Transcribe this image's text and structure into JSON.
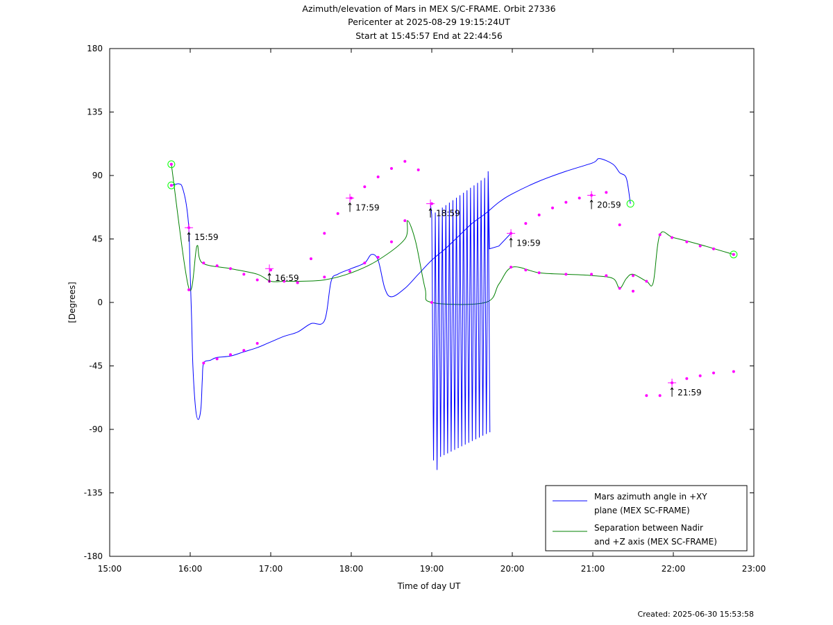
{
  "chart_data": {
    "type": "line",
    "title": "Azimuth/elevation of Mars in MEX S/C-FRAME.  Orbit 27336",
    "subtitle_1": "Pericenter at 2025-08-29 19:15:24UT",
    "subtitle_2": "Start at 15:45:57 End at 22:44:56",
    "xlabel": "Time of day UT",
    "ylabel": "[Degrees]",
    "footer": "Created: 2025-06-30 15:53:58",
    "xlim": [
      "15:00",
      "23:00"
    ],
    "ylim": [
      -180,
      180
    ],
    "x_ticks": [
      "15:00",
      "16:00",
      "17:00",
      "18:00",
      "19:00",
      "20:00",
      "21:00",
      "22:00",
      "23:00"
    ],
    "y_ticks": [
      "180",
      "135",
      "90",
      "45",
      "0",
      "-45",
      "-90",
      "-135",
      "-180"
    ],
    "legend_position": "bottom-right",
    "series": [
      {
        "name": "Mars azimuth angle in +XY plane (MEX SC-FRAME)",
        "legend_lines": [
          "Mars azimuth angle in +XY",
          "plane (MEX SC-FRAME)"
        ],
        "color": "#0000ff",
        "points": [
          [
            "15:45:57",
            83
          ],
          [
            "15:50",
            84
          ],
          [
            "15:52",
            84
          ],
          [
            "15:54",
            82
          ],
          [
            "15:57",
            70
          ],
          [
            "15:59",
            52
          ],
          [
            "16:00",
            20
          ],
          [
            "16:01",
            -10
          ],
          [
            "16:02",
            -45
          ],
          [
            "16:04",
            -75
          ],
          [
            "16:06",
            -83
          ],
          [
            "16:08",
            -75
          ],
          [
            "16:09",
            -55
          ],
          [
            "16:10",
            -43
          ],
          [
            "16:15",
            -41
          ],
          [
            "16:20",
            -39
          ],
          [
            "16:30",
            -38
          ],
          [
            "16:40",
            -35
          ],
          [
            "16:50",
            -32
          ],
          [
            "17:00",
            -28
          ],
          [
            "17:10",
            -24
          ],
          [
            "17:20",
            -21
          ],
          [
            "17:30",
            -15
          ],
          [
            "17:40",
            -13
          ],
          [
            "17:45",
            15
          ],
          [
            "17:50",
            20
          ],
          [
            "18:00",
            24
          ],
          [
            "18:10",
            28
          ],
          [
            "18:15",
            34
          ],
          [
            "18:20",
            30
          ],
          [
            "18:25",
            10
          ],
          [
            "18:30",
            4
          ],
          [
            "18:40",
            10
          ],
          [
            "18:50",
            20
          ],
          [
            "19:00",
            30
          ],
          [
            "19:10",
            38
          ],
          [
            "19:20",
            47
          ],
          [
            "19:30",
            56
          ],
          [
            "19:40",
            63
          ],
          [
            "19:50",
            71
          ],
          [
            "20:00",
            77
          ],
          [
            "20:20",
            86
          ],
          [
            "20:40",
            93
          ],
          [
            "21:00",
            99
          ],
          [
            "21:05",
            102
          ],
          [
            "21:15",
            98
          ],
          [
            "21:20",
            92
          ],
          [
            "21:25",
            88
          ],
          [
            "21:28",
            70
          ]
        ],
        "markers": [
          [
            "15:45:57",
            83
          ],
          [
            "15:59",
            53
          ],
          [
            "16:10",
            -43
          ],
          [
            "16:20",
            -40
          ],
          [
            "16:30",
            -37
          ],
          [
            "16:40",
            -34
          ],
          [
            "16:50",
            -29
          ],
          [
            "17:00",
            23
          ],
          [
            "17:20",
            14
          ],
          [
            "17:30",
            31
          ],
          [
            "17:40",
            49
          ],
          [
            "17:50",
            63
          ],
          [
            "18:00",
            74
          ],
          [
            "18:10",
            82
          ],
          [
            "18:20",
            89
          ],
          [
            "18:30",
            95
          ],
          [
            "18:40",
            100
          ],
          [
            "18:50",
            94
          ],
          [
            "19:00",
            70
          ],
          [
            "19:59",
            49
          ],
          [
            "20:10",
            56
          ],
          [
            "20:20",
            62
          ],
          [
            "20:30",
            67
          ],
          [
            "20:40",
            71
          ],
          [
            "20:50",
            74
          ],
          [
            "20:59",
            76
          ],
          [
            "21:10",
            78
          ],
          [
            "21:20",
            55
          ],
          [
            "21:30",
            8
          ],
          [
            "21:40",
            -66
          ],
          [
            "21:50",
            -66
          ],
          [
            "21:59",
            -57
          ],
          [
            "22:10",
            -54
          ],
          [
            "22:20",
            -52
          ],
          [
            "22:30",
            -50
          ],
          [
            "22:44:56",
            -49
          ]
        ]
      },
      {
        "name": "Separation between Nadir and +Z axis (MEX SC-FRAME)",
        "legend_lines": [
          "Separation between Nadir",
          "and +Z axis (MEX SC-FRAME)"
        ],
        "color": "#008000",
        "points": [
          [
            "15:45:57",
            98
          ],
          [
            "15:59",
            10
          ],
          [
            "16:05",
            40
          ],
          [
            "16:09",
            28
          ],
          [
            "16:30",
            24
          ],
          [
            "16:50",
            20
          ],
          [
            "17:00",
            15
          ],
          [
            "17:10",
            15
          ],
          [
            "17:20",
            15
          ],
          [
            "17:40",
            16
          ],
          [
            "18:00",
            21
          ],
          [
            "18:20",
            30
          ],
          [
            "18:40",
            45
          ],
          [
            "18:42",
            58
          ],
          [
            "18:48",
            43
          ],
          [
            "18:55",
            10
          ],
          [
            "19:00",
            0
          ],
          [
            "19:40",
            0
          ],
          [
            "19:50",
            13
          ],
          [
            "20:00",
            25
          ],
          [
            "20:20",
            21
          ],
          [
            "20:40",
            20
          ],
          [
            "21:00",
            19
          ],
          [
            "21:15",
            17
          ],
          [
            "21:20",
            10
          ],
          [
            "21:25",
            17
          ],
          [
            "21:30",
            20
          ],
          [
            "21:40",
            15
          ],
          [
            "21:45",
            14
          ],
          [
            "21:50",
            48
          ],
          [
            "22:00",
            46
          ],
          [
            "22:20",
            41
          ],
          [
            "22:44:56",
            34
          ]
        ],
        "markers": [
          [
            "15:45:57",
            98
          ],
          [
            "15:59",
            9
          ],
          [
            "16:10",
            28
          ],
          [
            "16:20",
            26
          ],
          [
            "16:30",
            24
          ],
          [
            "16:40",
            20
          ],
          [
            "16:50",
            16
          ],
          [
            "16:59",
            15
          ],
          [
            "17:10",
            15
          ],
          [
            "17:20",
            14
          ],
          [
            "17:40",
            18
          ],
          [
            "17:59",
            22
          ],
          [
            "18:10",
            28
          ],
          [
            "18:20",
            32
          ],
          [
            "18:30",
            43
          ],
          [
            "18:40",
            58
          ],
          [
            "19:00",
            0
          ],
          [
            "19:59",
            25
          ],
          [
            "20:10",
            23
          ],
          [
            "20:20",
            21
          ],
          [
            "20:40",
            20
          ],
          [
            "20:59",
            20
          ],
          [
            "21:10",
            19
          ],
          [
            "21:20",
            10
          ],
          [
            "21:30",
            19
          ],
          [
            "21:40",
            15
          ],
          [
            "21:50",
            48
          ],
          [
            "21:59",
            46
          ],
          [
            "22:10",
            43
          ],
          [
            "22:20",
            40
          ],
          [
            "22:30",
            38
          ],
          [
            "22:44:56",
            34
          ]
        ]
      }
    ],
    "annotations": [
      {
        "label": "15:59",
        "x": "15:59",
        "y": 53
      },
      {
        "label": "16:59",
        "x": "16:59",
        "y": 24
      },
      {
        "label": "17:59",
        "x": "17:59",
        "y": 74
      },
      {
        "label": "18:59",
        "x": "18:59",
        "y": 70
      },
      {
        "label": "19:59",
        "x": "19:59",
        "y": 49
      },
      {
        "label": "20:59",
        "x": "20:59",
        "y": 76
      },
      {
        "label": "21:59",
        "x": "21:59",
        "y": -57
      }
    ],
    "colors": {
      "marker": "#ff00ff",
      "start_end_circle": "#00ff00",
      "axes": "#000000"
    }
  }
}
